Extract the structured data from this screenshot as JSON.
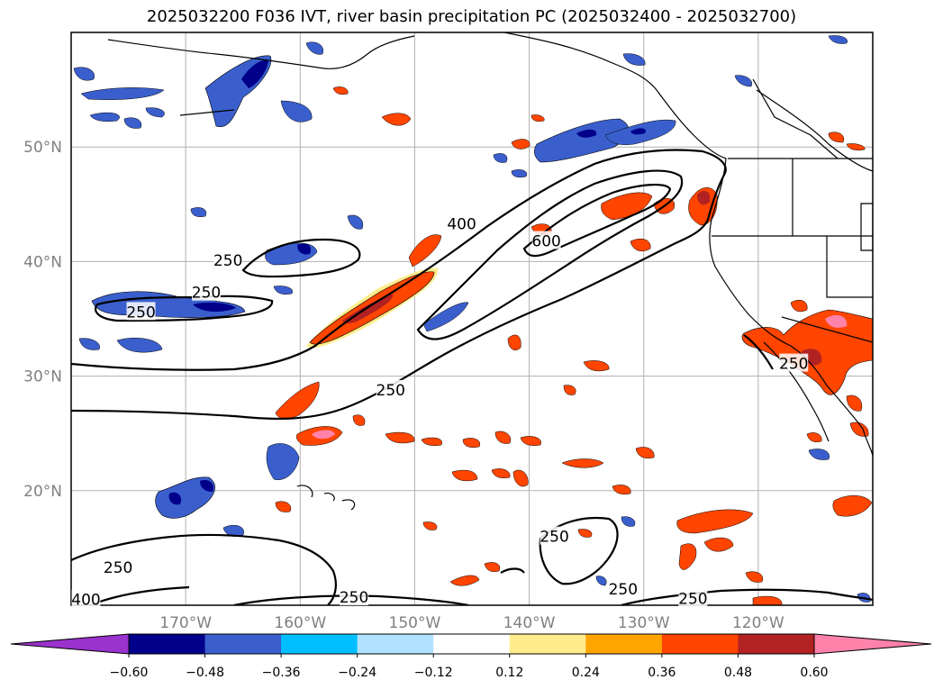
{
  "title": "2025032200 F036 IVT, river basin precipitation PC (2025032400 - 2025032700)",
  "colors": {
    "grid": "#b0b0b0",
    "contour": "#000000",
    "coast": "#000000"
  },
  "chart_data": {
    "type": "contour map",
    "title": "2025032200 F036 IVT, river basin precipitation PC (2025032400 - 2025032700)",
    "map_extent": {
      "lon": [
        -180,
        -110
      ],
      "lat": [
        10,
        60
      ]
    },
    "grid": true,
    "y_ticks": [
      {
        "lat": 20,
        "label": "20°N"
      },
      {
        "lat": 30,
        "label": "30°N"
      },
      {
        "lat": 40,
        "label": "40°N"
      },
      {
        "lat": 50,
        "label": "50°N"
      }
    ],
    "x_ticks": [
      {
        "lon": -170,
        "label": "170°W"
      },
      {
        "lon": -160,
        "label": "160°W"
      },
      {
        "lon": -150,
        "label": "150°W"
      },
      {
        "lon": -140,
        "label": "140°W"
      },
      {
        "lon": -130,
        "label": "130°W"
      },
      {
        "lon": -120,
        "label": "120°W"
      }
    ],
    "ivt_contour_levels": [
      250,
      400,
      600
    ],
    "contour_labels": [
      {
        "text": "400",
        "lon": -145.9,
        "lat": 43.3
      },
      {
        "text": "600",
        "lon": -138.5,
        "lat": 41.8
      },
      {
        "text": "250",
        "lon": -166.3,
        "lat": 40.1
      },
      {
        "text": "250",
        "lon": -168.2,
        "lat": 37.3
      },
      {
        "text": "250",
        "lon": -173.9,
        "lat": 35.6
      },
      {
        "text": "250",
        "lon": -116.9,
        "lat": 31.1
      },
      {
        "text": "250",
        "lon": -152.1,
        "lat": 28.8
      },
      {
        "text": "250",
        "lon": -137.8,
        "lat": 16.0
      },
      {
        "text": "250",
        "lon": -175.9,
        "lat": 13.3
      },
      {
        "text": "400",
        "lon": -178.7,
        "lat": 10.5
      },
      {
        "text": "250",
        "lon": -155.3,
        "lat": 10.7
      },
      {
        "text": "250",
        "lon": -131.8,
        "lat": 11.4
      },
      {
        "text": "250",
        "lon": -125.7,
        "lat": 10.6
      }
    ],
    "colorbar": {
      "levels": [
        -0.6,
        -0.48,
        -0.36,
        -0.24,
        -0.12,
        0.12,
        0.24,
        0.36,
        0.48,
        0.6
      ],
      "tick_labels": [
        "−0.60",
        "−0.48",
        "−0.36",
        "−0.24",
        "−0.12",
        "0.12",
        "0.24",
        "0.36",
        "0.48",
        "0.60"
      ],
      "colors": [
        "#9a32cd",
        "#00008b",
        "#3a5fcd",
        "#00bfff",
        "#b0e2ff",
        "#ffffff",
        "#ffec8b",
        "#ffa500",
        "#ff4500",
        "#b22222",
        "#ff82ab"
      ],
      "extend": "both"
    }
  }
}
